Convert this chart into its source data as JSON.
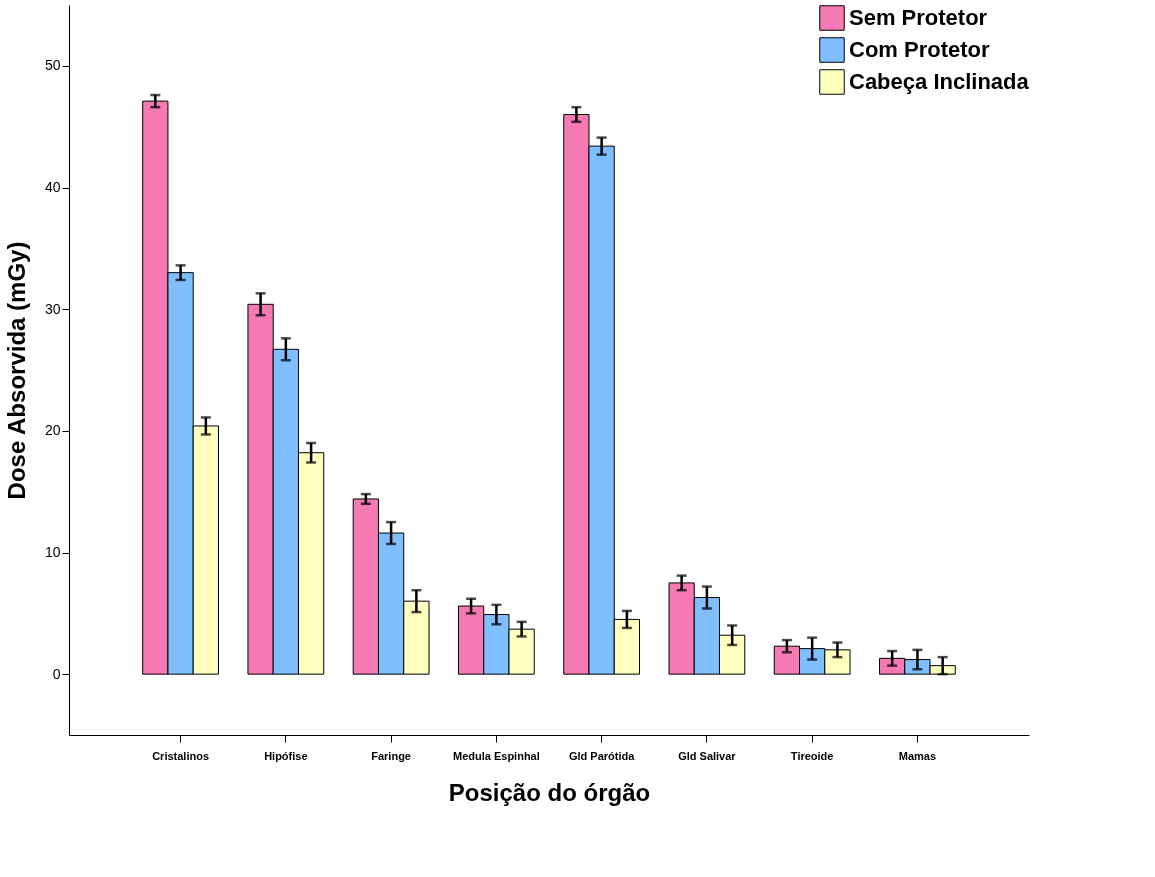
{
  "chart_data": {
    "type": "bar",
    "xlabel": "Posição do órgão",
    "ylabel": "Dose Absorvida (mGy)",
    "categories": [
      "Cristalinos",
      "Hipófise",
      "Faringe",
      "Medula Espinhal",
      "Gld Parótida",
      "Gld Salivar",
      "Tireoide",
      "Mamas"
    ],
    "series": [
      {
        "name": "Sem Protetor",
        "color": "#f57ab4",
        "values": [
          47.1,
          30.4,
          14.4,
          5.6,
          46.0,
          7.5,
          2.3,
          1.3
        ],
        "errors": [
          0.5,
          0.9,
          0.4,
          0.6,
          0.6,
          0.6,
          0.5,
          0.6
        ]
      },
      {
        "name": "Com Protetor",
        "color": "#7fbfff",
        "values": [
          33.0,
          26.7,
          11.6,
          4.9,
          43.4,
          6.3,
          2.1,
          1.2
        ],
        "errors": [
          0.6,
          0.9,
          0.9,
          0.8,
          0.7,
          0.9,
          0.9,
          0.8
        ]
      },
      {
        "name": "Cabeça Inclinada",
        "color": "#ffffc0",
        "values": [
          20.4,
          18.2,
          6.0,
          3.7,
          4.5,
          3.2,
          2.0,
          0.7
        ],
        "errors": [
          0.7,
          0.8,
          0.9,
          0.6,
          0.7,
          0.8,
          0.6,
          0.7
        ]
      }
    ],
    "ylim": [
      -5,
      55
    ],
    "yticks": [
      0,
      10,
      20,
      30,
      40,
      50
    ],
    "grid": false,
    "legend": "top right"
  }
}
